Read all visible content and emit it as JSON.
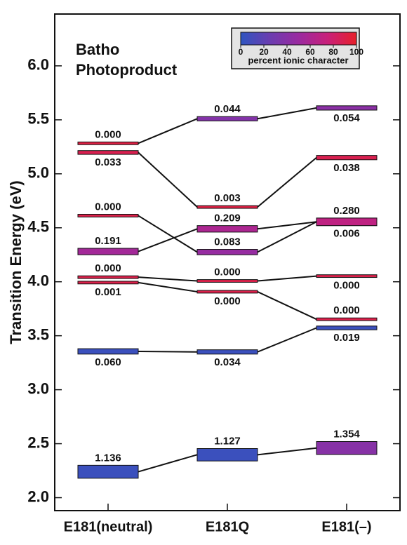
{
  "chart_data": {
    "type": "energy-level",
    "title": [
      "Batho",
      "Photoproduct"
    ],
    "ylabel": "Transition Energy (eV)",
    "ylim": [
      1.88,
      6.48
    ],
    "yticks": [
      {
        "value": 2,
        "label": "2.0"
      },
      2.5,
      {
        "value": 3,
        "label": "3.0"
      },
      3.5,
      {
        "value": 4,
        "label": "4.0"
      },
      4.5,
      {
        "value": 5,
        "label": "5.0"
      },
      5.5,
      {
        "value": 6,
        "label": "6.0"
      }
    ],
    "categories": [
      "E181(neutral)",
      "E181Q",
      "E181(–)"
    ],
    "columns": [
      {
        "levels": [
          {
            "energy": [
              5.27,
              5.295
            ],
            "ionic": 92,
            "label": "0.000",
            "label_side": "above"
          },
          {
            "energy": [
              5.18,
              5.215
            ],
            "ionic": 88,
            "label": "0.033",
            "label_side": "below"
          },
          {
            "energy": [
              4.6,
              4.625
            ],
            "ionic": 90,
            "label": "0.000",
            "label_side": "above"
          },
          {
            "energy": [
              4.25,
              4.31
            ],
            "ionic": 55,
            "label": "0.191",
            "label_side": "above"
          },
          {
            "energy": [
              4.03,
              4.055
            ],
            "ionic": 90,
            "label": "0.000",
            "label_side": "above"
          },
          {
            "energy": [
              3.98,
              4.005
            ],
            "ionic": 90,
            "label": "0.001",
            "label_side": "below"
          },
          {
            "energy": [
              3.33,
              3.38
            ],
            "ionic": 5,
            "label": "0.060",
            "label_side": "below"
          },
          {
            "energy": [
              2.18,
              2.3
            ],
            "ionic": 5,
            "label": "1.136",
            "label_side": "above"
          }
        ]
      },
      {
        "levels": [
          {
            "energy": [
              5.49,
              5.53
            ],
            "ionic": 38,
            "label": "0.044",
            "label_side": "above"
          },
          {
            "energy": [
              4.68,
              4.705
            ],
            "ionic": 92,
            "label": "0.003",
            "label_side": "above"
          },
          {
            "energy": [
              4.46,
              4.52
            ],
            "ionic": 60,
            "label": "0.209",
            "label_side": "above"
          },
          {
            "energy": [
              4.25,
              4.3
            ],
            "ionic": 48,
            "label": "0.083",
            "label_side": "above"
          },
          {
            "energy": [
              3.995,
              4.02
            ],
            "ionic": 90,
            "label": "0.000",
            "label_side": "above"
          },
          {
            "energy": [
              3.895,
              3.92
            ],
            "ionic": 90,
            "label": "0.000",
            "label_side": "below"
          },
          {
            "energy": [
              3.33,
              3.37
            ],
            "ionic": 5,
            "label": "0.034",
            "label_side": "below"
          },
          {
            "energy": [
              2.34,
              2.455
            ],
            "ionic": 5,
            "label": "1.127",
            "label_side": "above"
          }
        ]
      },
      {
        "levels": [
          {
            "energy": [
              5.59,
              5.63
            ],
            "ionic": 42,
            "label": "0.054",
            "label_side": "below"
          },
          {
            "energy": [
              5.13,
              5.17
            ],
            "ionic": 88,
            "label": "0.038",
            "label_side": "below"
          },
          {
            "energy": [
              4.52,
              4.59
            ],
            "ionic": 70,
            "label": "0.280",
            "label_side": "above"
          },
          {
            "energy": [
              4.52,
              4.59
            ],
            "ionic": 70,
            "label": "0.006",
            "label_side": "below"
          },
          {
            "energy": [
              4.04,
              4.065
            ],
            "ionic": 90,
            "label": "0.000",
            "label_side": "below"
          },
          {
            "energy": [
              3.64,
              3.665
            ],
            "ionic": 90,
            "label": "0.000",
            "label_side": "above"
          },
          {
            "energy": [
              3.555,
              3.59
            ],
            "ionic": 5,
            "label": "0.019",
            "label_side": "below"
          },
          {
            "energy": [
              2.4,
              2.52
            ],
            "ionic": 40,
            "label": "1.354",
            "label_side": "above"
          }
        ]
      }
    ],
    "links": [
      {
        "from": [
          0,
          0
        ],
        "to": [
          1,
          0
        ]
      },
      {
        "from": [
          0,
          1
        ],
        "to": [
          1,
          1
        ]
      },
      {
        "from": [
          0,
          2
        ],
        "to": [
          1,
          3
        ]
      },
      {
        "from": [
          0,
          3
        ],
        "to": [
          1,
          2
        ]
      },
      {
        "from": [
          0,
          4
        ],
        "to": [
          1,
          4
        ]
      },
      {
        "from": [
          0,
          5
        ],
        "to": [
          1,
          5
        ]
      },
      {
        "from": [
          0,
          6
        ],
        "to": [
          1,
          6
        ]
      },
      {
        "from": [
          0,
          7
        ],
        "to": [
          1,
          7
        ]
      },
      {
        "from": [
          1,
          0
        ],
        "to": [
          2,
          0
        ]
      },
      {
        "from": [
          1,
          1
        ],
        "to": [
          2,
          1
        ]
      },
      {
        "from": [
          1,
          2
        ],
        "to": [
          2,
          2
        ]
      },
      {
        "from": [
          1,
          3
        ],
        "to": [
          2,
          2
        ]
      },
      {
        "from": [
          1,
          4
        ],
        "to": [
          2,
          4
        ]
      },
      {
        "from": [
          1,
          5
        ],
        "to": [
          2,
          5
        ]
      },
      {
        "from": [
          1,
          6
        ],
        "to": [
          2,
          6
        ]
      },
      {
        "from": [
          1,
          7
        ],
        "to": [
          2,
          7
        ]
      }
    ],
    "colorbar": {
      "label": "percent ionic character",
      "lim": [
        0,
        100
      ],
      "ticks": [
        0,
        20,
        40,
        60,
        80,
        100
      ],
      "colors": [
        "#2f55c0",
        "#6a3db0",
        "#9a2aa0",
        "#c8207a",
        "#e8202a"
      ]
    }
  }
}
